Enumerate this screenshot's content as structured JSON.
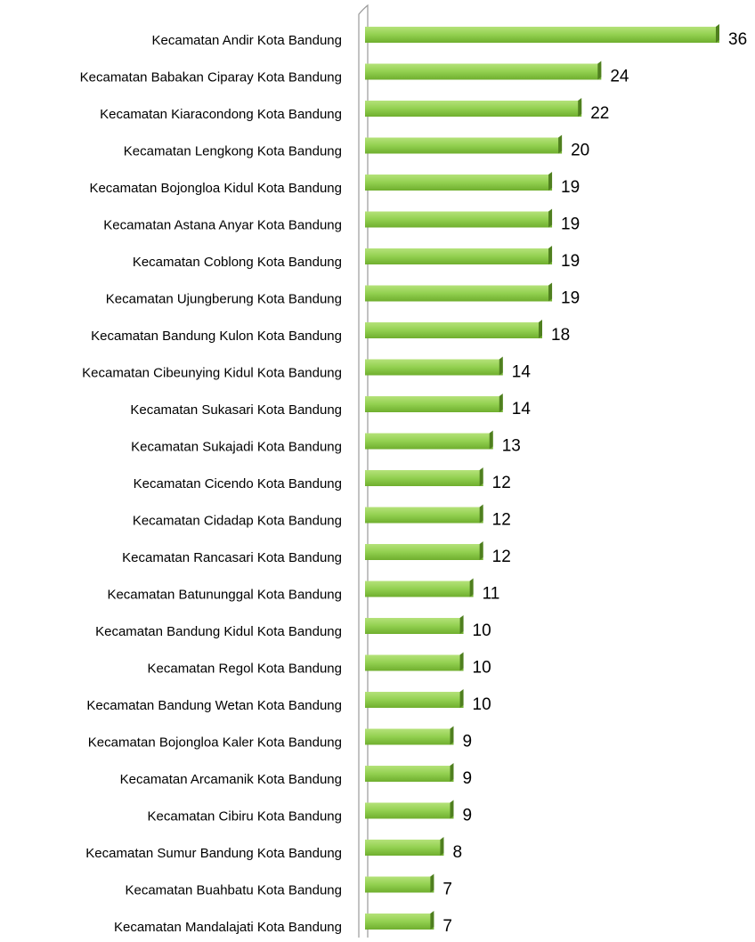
{
  "chart_data": {
    "type": "bar",
    "orientation": "horizontal",
    "color": "#92d050",
    "categories": [
      "Kecamatan Andir Kota Bandung",
      "Kecamatan Babakan Ciparay Kota Bandung",
      "Kecamatan Kiaracondong Kota Bandung",
      "Kecamatan Lengkong Kota Bandung",
      "Kecamatan Bojongloa Kidul Kota Bandung",
      "Kecamatan Astana Anyar Kota Bandung",
      "Kecamatan Coblong Kota Bandung",
      "Kecamatan Ujungberung Kota Bandung",
      "Kecamatan Bandung Kulon Kota Bandung",
      "Kecamatan Cibeunying Kidul Kota Bandung",
      "Kecamatan Sukasari Kota Bandung",
      "Kecamatan Sukajadi Kota Bandung",
      "Kecamatan Cicendo Kota Bandung",
      "Kecamatan Cidadap Kota Bandung",
      "Kecamatan Rancasari Kota Bandung",
      "Kecamatan Batununggal Kota Bandung",
      "Kecamatan Bandung Kidul Kota Bandung",
      "Kecamatan Regol Kota Bandung",
      "Kecamatan Bandung Wetan Kota Bandung",
      "Kecamatan Bojongloa Kaler Kota Bandung",
      "Kecamatan Arcamanik Kota Bandung",
      "Kecamatan Cibiru Kota Bandung",
      "Kecamatan Sumur Bandung Kota Bandung",
      "Kecamatan Buahbatu Kota Bandung",
      "Kecamatan Mandalajati Kota Bandung"
    ],
    "values": [
      36,
      24,
      22,
      20,
      19,
      19,
      19,
      19,
      18,
      14,
      14,
      13,
      12,
      12,
      12,
      11,
      10,
      10,
      10,
      9,
      9,
      9,
      8,
      7,
      7
    ]
  }
}
